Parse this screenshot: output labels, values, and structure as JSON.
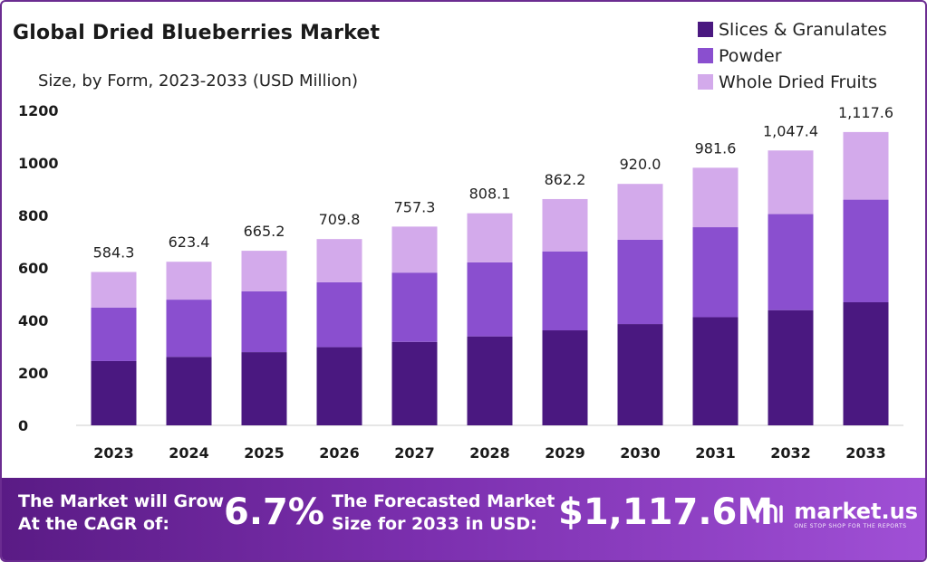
{
  "header": {
    "title": "Global Dried Blueberries Market",
    "subtitle": "Size, by Form, 2023-2033 (USD Million)"
  },
  "legend": [
    {
      "label": "Slices & Granulates",
      "color": "#4a1880"
    },
    {
      "label": "Powder",
      "color": "#8a4fcf"
    },
    {
      "label": "Whole Dried Fruits",
      "color": "#d3aaeb"
    }
  ],
  "chart_data": {
    "type": "bar",
    "stacked": true,
    "title": "Global Dried Blueberries Market",
    "subtitle": "Size, by Form, 2023-2033 (USD Million)",
    "categories": [
      "2023",
      "2024",
      "2025",
      "2026",
      "2027",
      "2028",
      "2029",
      "2030",
      "2031",
      "2032",
      "2033"
    ],
    "series": [
      {
        "name": "Slices & Granulates",
        "color": "#4a1880",
        "values": [
          245,
          261,
          279,
          298,
          318,
          339,
          362,
          386,
          412,
          439,
          469
        ]
      },
      {
        "name": "Powder",
        "color": "#8a4fcf",
        "values": [
          204,
          218,
          232,
          247,
          264,
          282,
          301,
          321,
          343,
          366,
          391
        ]
      },
      {
        "name": "Whole Dried Fruits",
        "color": "#d3aaeb",
        "values": [
          135.3,
          144.4,
          154.2,
          164.8,
          175.3,
          187.1,
          199.2,
          213.0,
          226.6,
          242.4,
          257.6
        ]
      }
    ],
    "totals": [
      "584.3",
      "623.4",
      "665.2",
      "709.8",
      "757.3",
      "808.1",
      "862.2",
      "920.0",
      "981.6",
      "1,047.4",
      "1,117.6"
    ],
    "y_ticks": [
      "0",
      "200",
      "400",
      "600",
      "800",
      "1000",
      "1200"
    ],
    "ylim": [
      0,
      1200
    ],
    "grid": false,
    "legend_position": "top-right"
  },
  "footer": {
    "cagr_text_line1": "The Market will Grow",
    "cagr_text_line2": "At the CAGR of:",
    "cagr_value": "6.7%",
    "forecast_text_line1": "The Forecasted Market",
    "forecast_text_line2": "Size for 2033 in USD:",
    "forecast_value": "$1,117.6M",
    "brand_name": "market.us",
    "brand_tagline": "ONE STOP SHOP FOR THE REPORTS"
  }
}
